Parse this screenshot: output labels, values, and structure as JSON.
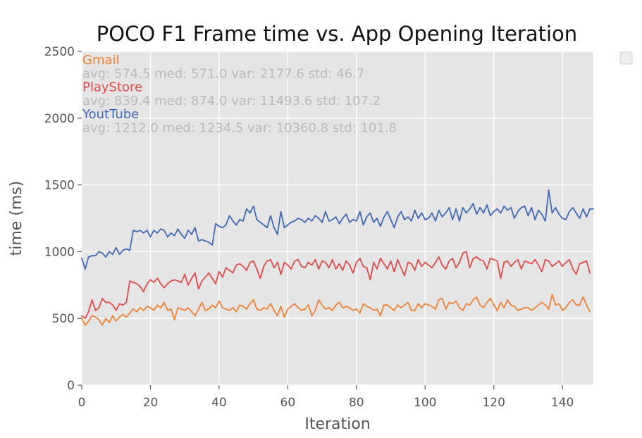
{
  "chart_data": {
    "type": "line",
    "title": "POCO F1 Frame time vs. App Opening Iteration",
    "xlabel": "Iteration",
    "ylabel": "time (ms)",
    "xlim": [
      0,
      149
    ],
    "ylim": [
      0,
      2500
    ],
    "xticks": [
      0,
      20,
      40,
      60,
      80,
      100,
      120,
      140
    ],
    "yticks": [
      0,
      500,
      1000,
      1500,
      2000,
      2500
    ],
    "grid": true,
    "legend_placement": "top-right",
    "series": [
      {
        "name": "Gmail",
        "color": "#F28034",
        "stats": "avg: 574.5 med: 571.0 var: 2177.6 std: 46.7",
        "values": [
          500,
          450,
          480,
          520,
          510,
          490,
          450,
          500,
          470,
          520,
          480,
          510,
          530,
          510,
          540,
          570,
          550,
          580,
          560,
          590,
          580,
          560,
          600,
          580,
          620,
          560,
          570,
          490,
          580,
          570,
          560,
          580,
          550,
          520,
          570,
          620,
          560,
          570,
          600,
          580,
          630,
          580,
          570,
          560,
          580,
          550,
          600,
          590,
          570,
          610,
          640,
          570,
          560,
          580,
          570,
          610,
          560,
          520,
          590,
          510,
          570,
          590,
          610,
          580,
          560,
          570,
          600,
          520,
          560,
          640,
          600,
          570,
          580,
          560,
          600,
          620,
          580,
          590,
          580,
          560,
          570,
          540,
          610,
          590,
          580,
          560,
          570,
          520,
          600,
          600,
          580,
          560,
          600,
          580,
          600,
          620,
          560,
          560,
          610,
          580,
          610,
          600,
          590,
          570,
          640,
          650,
          570,
          620,
          610,
          630,
          580,
          560,
          610,
          600,
          640,
          660,
          600,
          580,
          620,
          650,
          600,
          560,
          620,
          580,
          640,
          600,
          590,
          560,
          570,
          580,
          580,
          560,
          580,
          600,
          620,
          600,
          570,
          680,
          600,
          610,
          560,
          580,
          620,
          640,
          600,
          600,
          660,
          600,
          550
        ]
      },
      {
        "name": "PlayStore",
        "color": "#E24A4A",
        "stats": "avg: 839.4 med: 874.0 var: 11493.6 std: 107.2",
        "values": [
          520,
          500,
          550,
          640,
          560,
          580,
          650,
          620,
          620,
          600,
          560,
          610,
          600,
          620,
          780,
          770,
          760,
          740,
          700,
          760,
          790,
          770,
          800,
          760,
          730,
          760,
          780,
          790,
          780,
          770,
          830,
          750,
          800,
          840,
          720,
          780,
          810,
          840,
          800,
          760,
          850,
          810,
          880,
          860,
          840,
          900,
          910,
          890,
          860,
          920,
          930,
          870,
          800,
          890,
          930,
          940,
          880,
          920,
          830,
          920,
          900,
          870,
          930,
          940,
          890,
          880,
          920,
          900,
          940,
          870,
          930,
          920,
          880,
          940,
          870,
          910,
          860,
          930,
          900,
          840,
          920,
          950,
          890,
          880,
          790,
          920,
          870,
          950,
          910,
          870,
          930,
          850,
          940,
          880,
          820,
          920,
          910,
          860,
          940,
          890,
          920,
          900,
          880,
          920,
          960,
          900,
          870,
          930,
          950,
          880,
          920,
          990,
          1000,
          880,
          950,
          960,
          940,
          930,
          870,
          950,
          940,
          930,
          800,
          920,
          930,
          890,
          920,
          940,
          870,
          930,
          920,
          910,
          940,
          900,
          850,
          940,
          930,
          890,
          910,
          930,
          890,
          920,
          940,
          870,
          830,
          910,
          920,
          930,
          840
        ]
      },
      {
        "name": "YoutTube",
        "color": "#3F68B9",
        "stats": "avg: 1212.0 med: 1234.5 var: 10360.8 std: 101.8",
        "values": [
          950,
          870,
          960,
          970,
          970,
          1000,
          990,
          960,
          1000,
          980,
          1030,
          980,
          1010,
          1020,
          1010,
          1160,
          1150,
          1160,
          1140,
          1160,
          1110,
          1160,
          1140,
          1170,
          1160,
          1110,
          1140,
          1120,
          1170,
          1130,
          1100,
          1160,
          1130,
          1180,
          1080,
          1090,
          1080,
          1070,
          1050,
          1210,
          1190,
          1180,
          1200,
          1270,
          1230,
          1200,
          1240,
          1230,
          1320,
          1290,
          1340,
          1240,
          1220,
          1200,
          1180,
          1270,
          1180,
          1130,
          1300,
          1180,
          1200,
          1220,
          1230,
          1250,
          1240,
          1220,
          1250,
          1230,
          1270,
          1250,
          1220,
          1300,
          1230,
          1240,
          1260,
          1210,
          1250,
          1280,
          1220,
          1240,
          1230,
          1300,
          1200,
          1260,
          1290,
          1220,
          1250,
          1190,
          1260,
          1300,
          1240,
          1180,
          1260,
          1300,
          1240,
          1260,
          1230,
          1310,
          1250,
          1290,
          1240,
          1250,
          1290,
          1230,
          1310,
          1260,
          1290,
          1330,
          1240,
          1320,
          1230,
          1330,
          1290,
          1320,
          1360,
          1280,
          1330,
          1290,
          1350,
          1270,
          1300,
          1320,
          1290,
          1340,
          1310,
          1330,
          1250,
          1300,
          1330,
          1340,
          1270,
          1330,
          1240,
          1310,
          1280,
          1230,
          1460,
          1290,
          1330,
          1280,
          1250,
          1240,
          1300,
          1330,
          1290,
          1250,
          1320,
          1260,
          1320,
          1320
        ]
      }
    ]
  }
}
